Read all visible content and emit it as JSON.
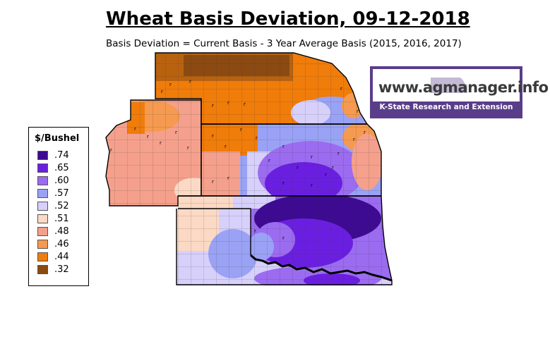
{
  "title": "Wheat Basis Deviation, 09-12-2018",
  "subtitle": "Basis Deviation = Current Basis - 3 Year Average Basis (2015, 2016, 2017)",
  "legend": {
    "title": "$/Bushel",
    "items": [
      {
        "label": ".74",
        "color": "#3d0a91"
      },
      {
        "label": ".65",
        "color": "#6a1fe0"
      },
      {
        "label": ".60",
        "color": "#9b6cf0"
      },
      {
        "label": ".57",
        "color": "#9aa2f5"
      },
      {
        "label": ".52",
        "color": "#d6d0fb"
      },
      {
        "label": ".51",
        "color": "#fbd9c4"
      },
      {
        "label": ".48",
        "color": "#f5a08c"
      },
      {
        "label": ".46",
        "color": "#f59a50"
      },
      {
        "label": ".44",
        "color": "#f07c0a"
      },
      {
        "label": ".32",
        "color": "#8b4a12"
      }
    ]
  },
  "logo": {
    "url": "www.agmanager.info",
    "tagline": "K-State Research and Extension",
    "brand_color": "#5a3d8a"
  }
}
